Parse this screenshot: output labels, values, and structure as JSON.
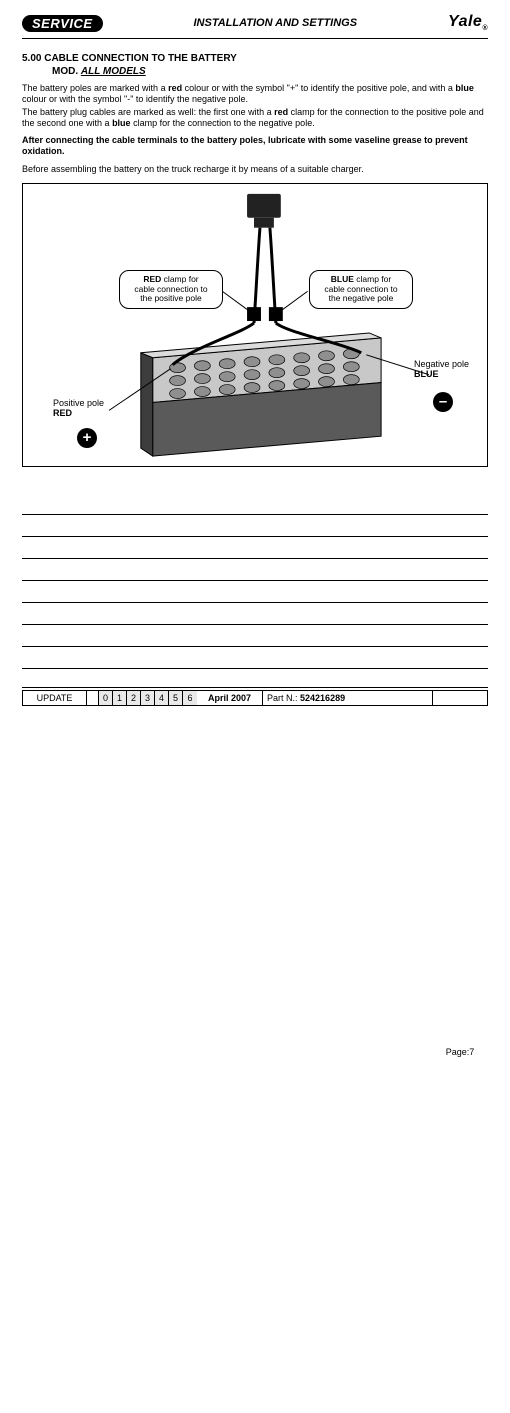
{
  "header": {
    "service_badge": "SERVICE",
    "title": "INSTALLATION AND SETTINGS",
    "brand": "Yale",
    "brand_sub": "®"
  },
  "section": {
    "number_title": "5.00  CABLE CONNECTION TO THE BATTERY",
    "mod_prefix": "MOD. ",
    "mod_value": "ALL MODELS"
  },
  "paragraphs": {
    "p1_a": "The battery poles are marked with a ",
    "p1_red": "red",
    "p1_b": " colour or with the symbol \"+\" to identify the positive pole, and with a ",
    "p1_blue": "blue",
    "p1_c": " colour or with the symbol \"-\" to identify the negative pole.",
    "p2_a": "The battery plug cables are marked as well: the first one with a ",
    "p2_red": "red",
    "p2_b": " clamp for the connection to the positive pole and the second one with a ",
    "p2_blue": "blue",
    "p2_c": " clamp for the connection to the negative pole.",
    "p3": "After connecting the cable terminals to the battery poles, lubricate with some vaseline grease to prevent oxidation.",
    "p4": "Before assembling the battery on the truck recharge it by means of a suitable charger."
  },
  "figure": {
    "callout_left_l1": "RED",
    "callout_left_l2": " clamp for",
    "callout_left_l3": "cable connection to",
    "callout_left_l4": "the positive pole",
    "callout_right_l1": "BLUE",
    "callout_right_l2": " clamp for",
    "callout_right_l3": "cable connection to",
    "callout_right_l4": "the negative pole",
    "neg_label_l1": "Negative pole",
    "neg_label_l2": "BLUE",
    "pos_label_l1": "Positive pole",
    "pos_label_l2": "RED",
    "plus": "+",
    "minus": "–",
    "colors": {
      "battery_top": "#c8c8c8",
      "battery_front": "#5a5a5a",
      "battery_side": "#3d3d3d",
      "cell_cap": "#8f8f8f",
      "connector": "#222222"
    }
  },
  "footer": {
    "update": "UPDATE",
    "indices": [
      "0",
      "1",
      "2",
      "3",
      "4",
      "5",
      "6"
    ],
    "date": "April 2007",
    "part_label": "Part N.: ",
    "part_value": "524216289",
    "page_label": "Page: ",
    "page_value": "7"
  },
  "layout": {
    "note_line_count": 8
  }
}
